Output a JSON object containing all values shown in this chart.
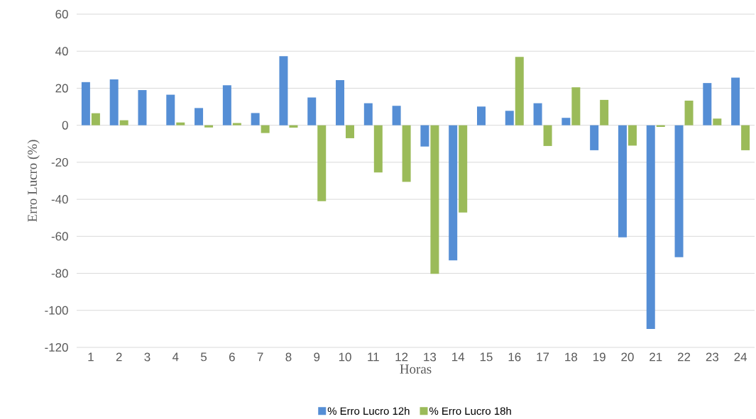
{
  "chart_data": {
    "type": "bar",
    "xlabel": "Horas",
    "ylabel": "Erro Lucro (%)",
    "categories": [
      "1",
      "2",
      "3",
      "4",
      "5",
      "6",
      "7",
      "8",
      "9",
      "10",
      "11",
      "12",
      "13",
      "14",
      "15",
      "16",
      "17",
      "18",
      "19",
      "20",
      "21",
      "22",
      "23",
      "24"
    ],
    "series": [
      {
        "name": "% Erro Lucro 12h",
        "color": "#558ed5",
        "values": [
          23.3,
          24.8,
          19,
          16.5,
          9.3,
          21.6,
          6.6,
          37.3,
          15,
          24.4,
          11.9,
          10.5,
          -11.5,
          -73,
          10.1,
          7.8,
          11.9,
          4,
          -13.5,
          -60.5,
          -110,
          -71.3,
          22.8,
          25.7
        ]
      },
      {
        "name": "% Erro Lucro 18h",
        "color": "#9bbb59",
        "values": [
          6.5,
          2.7,
          null,
          1.5,
          -1.2,
          1.2,
          -4.2,
          -1.3,
          -41,
          -7,
          -25.5,
          -30.6,
          -80.3,
          -47.1,
          null,
          36.9,
          -11.2,
          20.5,
          13.7,
          -11,
          -0.9,
          13.3,
          3.6,
          -13.5
        ]
      }
    ],
    "ylim": [
      -120,
      60
    ],
    "yticks": [
      -120,
      -100,
      -80,
      -60,
      -40,
      -20,
      0,
      20,
      40,
      60
    ],
    "grid": "y",
    "legend": "bottom"
  }
}
